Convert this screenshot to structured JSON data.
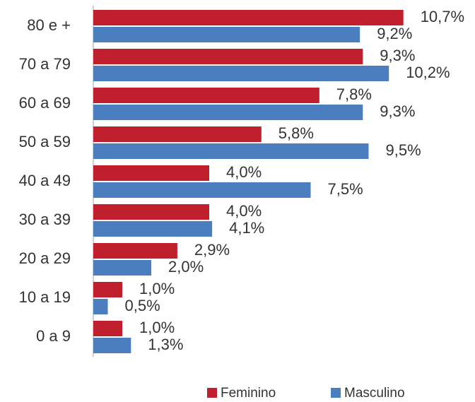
{
  "chart_data": {
    "type": "hbar",
    "categories": [
      "80 e +",
      "70 a 79",
      "60 a 69",
      "50 a 59",
      "40 a 49",
      "30 a 39",
      "20 a 29",
      "10 a 19",
      "0 a 9"
    ],
    "series": [
      {
        "name": "Feminino",
        "color": "#c0202e",
        "values": [
          10.7,
          9.3,
          7.8,
          5.8,
          4.0,
          4.0,
          2.9,
          1.0,
          1.0
        ],
        "value_labels": [
          "10,7%",
          "9,3%",
          "7,8%",
          "5,8%",
          "4,0%",
          "4,0%",
          "2,9%",
          "1,0%",
          "1,0%"
        ]
      },
      {
        "name": "Masculino",
        "color": "#4a7ebf",
        "values": [
          9.2,
          10.2,
          9.3,
          9.5,
          7.5,
          4.1,
          2.0,
          0.5,
          1.3
        ],
        "value_labels": [
          "9,2%",
          "10,2%",
          "9,3%",
          "9,5%",
          "7,5%",
          "4,1%",
          "2,0%",
          "0,5%",
          "1,3%"
        ]
      }
    ],
    "xlim": [
      0,
      13
    ],
    "legend": "bottom"
  }
}
